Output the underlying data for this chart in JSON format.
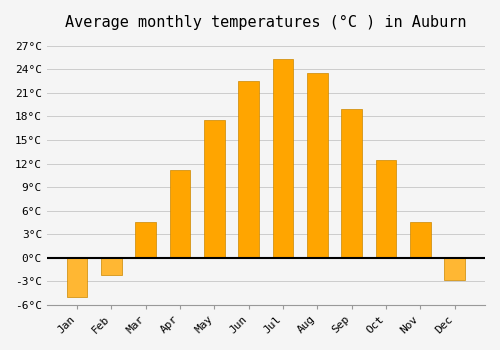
{
  "title": "Average monthly temperatures (°C ) in Auburn",
  "months": [
    "Jan",
    "Feb",
    "Mar",
    "Apr",
    "May",
    "Jun",
    "Jul",
    "Aug",
    "Sep",
    "Oct",
    "Nov",
    "Dec"
  ],
  "values": [
    -5.0,
    -2.2,
    4.5,
    11.2,
    17.5,
    22.5,
    25.3,
    23.5,
    19.0,
    12.5,
    4.5,
    -2.8
  ],
  "bar_color_positive": "#FFA500",
  "bar_color_negative": "#FFB733",
  "bar_edge_color": "#CC8800",
  "background_color": "#F5F5F5",
  "grid_color": "#CCCCCC",
  "ylim": [
    -6,
    28
  ],
  "yticks": [
    -6,
    -3,
    0,
    3,
    6,
    9,
    12,
    15,
    18,
    21,
    24,
    27
  ],
  "ytick_labels": [
    "-6°C",
    "-3°C",
    "0°C",
    "3°C",
    "6°C",
    "9°C",
    "12°C",
    "15°C",
    "18°C",
    "21°C",
    "24°C",
    "27°C"
  ],
  "zero_line_color": "#000000",
  "title_fontsize": 11,
  "tick_fontsize": 8,
  "font_family": "monospace"
}
